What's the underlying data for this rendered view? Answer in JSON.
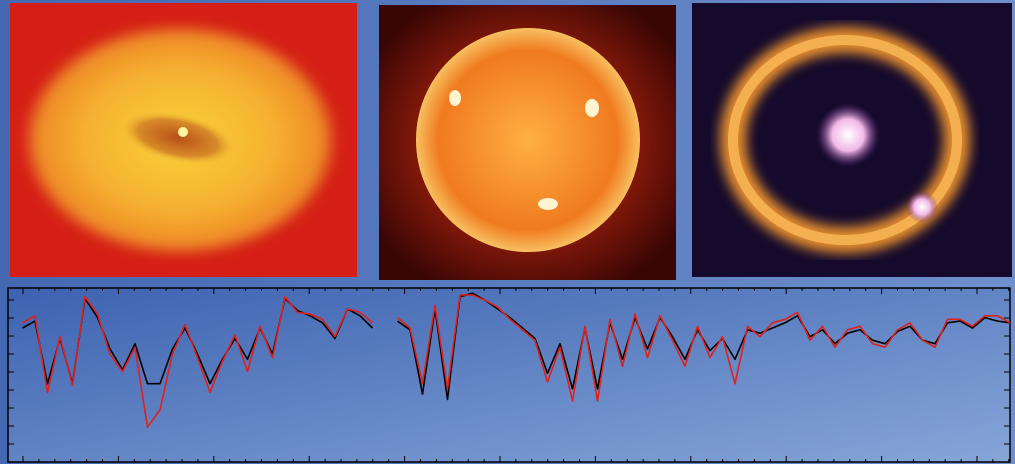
{
  "chart_data": {
    "type": "line",
    "series": [
      {
        "color": "#000000",
        "values": [
          null,
          0.77,
          0.81,
          0.45,
          0.71,
          0.45,
          0.94,
          0.83,
          0.65,
          0.53,
          0.68,
          0.45,
          0.45,
          0.65,
          0.77,
          0.62,
          0.45,
          0.59,
          0.71,
          0.59,
          0.77,
          0.62,
          0.94,
          0.87,
          0.84,
          0.8,
          0.71,
          0.88,
          0.84,
          0.77,
          null,
          0.81,
          0.76,
          0.39,
          0.88,
          0.36,
          0.95,
          0.97,
          0.93,
          0.88,
          0.83,
          0.77,
          0.71,
          0.51,
          0.68,
          0.42,
          0.77,
          0.42,
          0.8,
          0.59,
          0.83,
          0.65,
          0.83,
          0.72,
          0.59,
          0.76,
          0.64,
          0.71,
          0.59,
          0.76,
          0.74,
          0.77,
          0.8,
          0.84,
          0.72,
          0.76,
          0.68,
          0.74,
          0.76,
          0.7,
          0.68,
          0.75,
          0.78,
          0.7,
          0.68,
          0.8,
          0.81,
          0.77,
          0.83,
          0.81,
          0.8
        ]
      },
      {
        "color": "#e0201a",
        "values": [
          null,
          0.8,
          0.84,
          0.4,
          0.72,
          0.44,
          0.95,
          0.85,
          0.62,
          0.52,
          0.66,
          0.2,
          0.3,
          0.62,
          0.79,
          0.6,
          0.4,
          0.58,
          0.73,
          0.52,
          0.78,
          0.6,
          0.95,
          0.86,
          0.85,
          0.82,
          0.72,
          0.88,
          0.86,
          0.8,
          null,
          0.83,
          0.77,
          0.45,
          0.9,
          0.42,
          0.96,
          0.96,
          0.93,
          0.89,
          0.82,
          0.76,
          0.7,
          0.46,
          0.66,
          0.35,
          0.78,
          0.35,
          0.82,
          0.55,
          0.85,
          0.6,
          0.84,
          0.7,
          0.55,
          0.78,
          0.6,
          0.72,
          0.45,
          0.78,
          0.72,
          0.8,
          0.82,
          0.86,
          0.7,
          0.78,
          0.66,
          0.76,
          0.78,
          0.68,
          0.66,
          0.76,
          0.8,
          0.7,
          0.66,
          0.82,
          0.82,
          0.78,
          0.84,
          0.84,
          0.8
        ]
      }
    ],
    "ylim": [
      0,
      1
    ]
  }
}
